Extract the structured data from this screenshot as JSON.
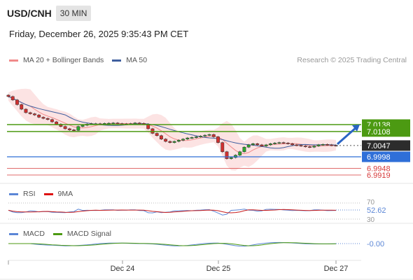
{
  "header": {
    "symbol": "USD/CNH",
    "timeframe": "30 MIN",
    "datetime": "Friday, December 26, 2025 9:35:43 PM CET"
  },
  "legend": {
    "ma20": "MA 20 + Bollinger Bands",
    "ma50": "MA 50",
    "credit": "Research © 2025 Trading Central"
  },
  "colors": {
    "green": "#4c9a12",
    "blue": "#2f6fd8",
    "red": "#d63a3a",
    "ma20": "#f08a8a",
    "ma50": "#3f5f9f",
    "band": "#fbd9d9",
    "bull": "#2ea82e",
    "bear": "#d03030",
    "arrow": "#2a64c4"
  },
  "chart_data": [
    {
      "type": "candlestick",
      "levels": [
        {
          "value": 7.0138,
          "label": "7.0138",
          "kind": "resistance",
          "color": "green"
        },
        {
          "value": 7.0108,
          "label": "7.0108",
          "kind": "resistance",
          "color": "green"
        },
        {
          "value": 7.0047,
          "label": "7.0047",
          "kind": "last-price",
          "color": "dark"
        },
        {
          "value": 6.9998,
          "label": "6.9998",
          "kind": "pivot",
          "color": "blue"
        },
        {
          "value": 6.9948,
          "label": "6.9948",
          "kind": "support",
          "color": "red"
        },
        {
          "value": 6.9919,
          "label": "6.9919",
          "kind": "support",
          "color": "red"
        }
      ],
      "close_series": [
        7.026,
        7.0245,
        7.0225,
        7.0205,
        7.019,
        7.0185,
        7.018,
        7.017,
        7.0165,
        7.016,
        7.015,
        7.014,
        7.013,
        7.012,
        7.0115,
        7.0113,
        7.013,
        7.0135,
        7.014,
        7.0142,
        7.0142,
        7.0141,
        7.0143,
        7.0144,
        7.0145,
        7.0142,
        7.0141,
        7.014,
        7.0142,
        7.0145,
        7.0143,
        7.014,
        7.012,
        7.01,
        7.009,
        7.0075,
        7.0065,
        7.006,
        7.0065,
        7.007,
        7.0075,
        7.008,
        7.0082,
        7.0085,
        7.0088,
        7.0092,
        7.0095,
        7.0085,
        7.006,
        7.002,
        6.999,
        6.9995,
        7.0005,
        7.002,
        7.004,
        7.005,
        7.0055,
        7.005,
        7.0045,
        7.005,
        7.0055,
        7.0058,
        7.006,
        7.0058,
        7.0055,
        7.005,
        7.0048,
        7.0045,
        7.0042,
        7.004,
        7.0045,
        7.005,
        7.0052,
        7.005,
        7.0048,
        7.0047
      ],
      "up_arrow_target": 7.0138
    },
    {
      "type": "line",
      "name_labels": [
        "RSI",
        "9MA"
      ],
      "levels": [
        70,
        30
      ],
      "last_value": 52.62,
      "last_label": "52.62"
    },
    {
      "type": "line",
      "name_labels": [
        "MACD",
        "MACD Signal"
      ],
      "last_value": -0.0,
      "last_label": "-0.00",
      "x_tick_labels": [
        "Dec 24",
        "Dec 25",
        "Dec 27"
      ]
    }
  ]
}
